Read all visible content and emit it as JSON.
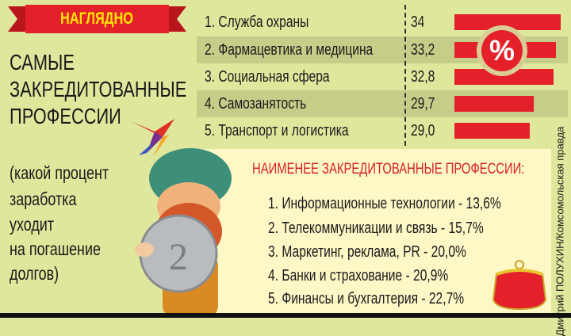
{
  "header": {
    "ribbon": "НАГЛЯДНО",
    "title_lines": [
      "САМЫЕ",
      "ЗАКРЕДИТОВАННЫЕ",
      "ПРОФЕССИИ"
    ],
    "subtitle_lines": [
      "(какой процент",
      "заработка",
      "уходит",
      "на погашение",
      "долгов)"
    ]
  },
  "colors": {
    "background": "#dfe79c",
    "accent_red": "#e4202a",
    "ribbon_text": "#ffe600",
    "panel": "#fdf8c6"
  },
  "icons": [
    "bird-logo-icon",
    "percent-icon",
    "gnome-with-coin-illustration",
    "purse-icon"
  ],
  "chart_data": {
    "type": "bar",
    "orientation": "horizontal",
    "categories": [
      "1. Служба охраны",
      "2. Фармацевтика и медицина",
      "3. Социальная сфера",
      "4. Самозанятость",
      "5. Транспорт и логистика"
    ],
    "value_labels": [
      "34",
      "33,2",
      "32,8",
      "29,7",
      "29,0"
    ],
    "values": [
      34,
      33.2,
      32.8,
      29.7,
      29.0
    ],
    "unit": "%"
  },
  "least": {
    "heading": "НАИМЕНЕЕ ЗАКРЕДИТОВАННЫЕ ПРОФЕССИИ:",
    "items": [
      "1. Информационные технологии - 13,6%",
      "2. Телекоммуникации и связь - 15,7%",
      "3. Маркетинг, реклама, PR - 20,0%",
      "4. Банки и страхование - 20,9%",
      "5. Финансы и бухгалтерия - 22,7%"
    ]
  },
  "credit": "Дмитрий ПОЛУХИН/Комсомольская правда",
  "percent_symbol": "%"
}
